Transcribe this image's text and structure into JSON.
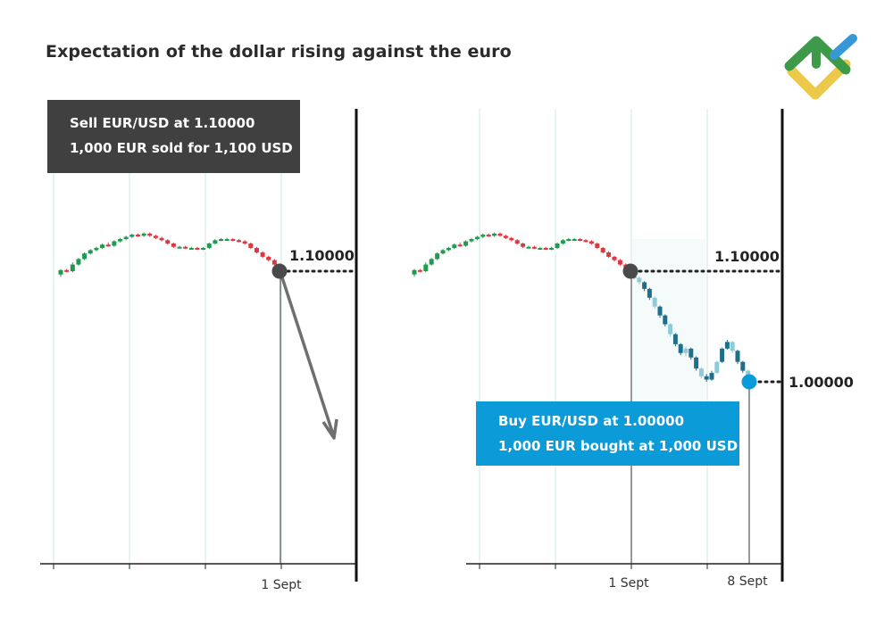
{
  "title": "Expectation of the dollar rising against the euro",
  "sell_box": {
    "line1": "Sell EUR/USD at 1.10000",
    "line2": "1,000 EUR sold for 1,100 USD"
  },
  "buy_box": {
    "line1": "Buy EUR/USD at 1.00000",
    "line2": "1,000 EUR bought at 1,000 USD"
  },
  "colors": {
    "bull": "#1e9b4c",
    "bear": "#e0363f",
    "forecast_dark": "#1f6f8c",
    "forecast_light": "#8ecbd9",
    "sell_box": "#404040",
    "buy_box": "#0c9bd9",
    "sell_marker": "#4a4a4a",
    "buy_marker": "#0c9bd9",
    "arrow": "#6f6f6f",
    "grid": "#cfe8e6"
  },
  "logo": {
    "icon": "litefinance-logo-icon"
  },
  "chart_data": [
    {
      "type": "candlestick",
      "title": "",
      "xlabel": "",
      "ylabel": "",
      "x_tick_labels": [
        "",
        "",
        "",
        "1 Sept"
      ],
      "price_label": "1.10000",
      "entry": {
        "date": "1 Sept",
        "price": 1.1,
        "action": "Sell"
      },
      "expected_direction": "down",
      "ylim": [
        0.96,
        1.16
      ],
      "grid": true,
      "candles": [
        {
          "o": 1.097,
          "c": 1.101,
          "h": 1.102,
          "l": 1.095
        },
        {
          "o": 1.101,
          "c": 1.1,
          "h": 1.102,
          "l": 1.099
        },
        {
          "o": 1.1,
          "c": 1.106,
          "h": 1.108,
          "l": 1.099
        },
        {
          "o": 1.106,
          "c": 1.111,
          "h": 1.112,
          "l": 1.105
        },
        {
          "o": 1.111,
          "c": 1.116,
          "h": 1.117,
          "l": 1.11
        },
        {
          "o": 1.116,
          "c": 1.119,
          "h": 1.12,
          "l": 1.115
        },
        {
          "o": 1.119,
          "c": 1.121,
          "h": 1.122,
          "l": 1.118
        },
        {
          "o": 1.121,
          "c": 1.124,
          "h": 1.125,
          "l": 1.12
        },
        {
          "o": 1.124,
          "c": 1.123,
          "h": 1.126,
          "l": 1.122
        },
        {
          "o": 1.123,
          "c": 1.127,
          "h": 1.128,
          "l": 1.122
        },
        {
          "o": 1.127,
          "c": 1.129,
          "h": 1.13,
          "l": 1.126
        },
        {
          "o": 1.129,
          "c": 1.131,
          "h": 1.132,
          "l": 1.128
        },
        {
          "o": 1.131,
          "c": 1.133,
          "h": 1.134,
          "l": 1.13
        },
        {
          "o": 1.133,
          "c": 1.132,
          "h": 1.134,
          "l": 1.131
        },
        {
          "o": 1.132,
          "c": 1.134,
          "h": 1.135,
          "l": 1.131
        },
        {
          "o": 1.134,
          "c": 1.132,
          "h": 1.135,
          "l": 1.131
        },
        {
          "o": 1.132,
          "c": 1.13,
          "h": 1.133,
          "l": 1.129
        },
        {
          "o": 1.13,
          "c": 1.128,
          "h": 1.131,
          "l": 1.127
        },
        {
          "o": 1.128,
          "c": 1.125,
          "h": 1.129,
          "l": 1.124
        },
        {
          "o": 1.125,
          "c": 1.122,
          "h": 1.126,
          "l": 1.121
        },
        {
          "o": 1.122,
          "c": 1.122,
          "h": 1.123,
          "l": 1.121
        },
        {
          "o": 1.122,
          "c": 1.121,
          "h": 1.123,
          "l": 1.12
        },
        {
          "o": 1.121,
          "c": 1.121,
          "h": 1.122,
          "l": 1.12
        },
        {
          "o": 1.121,
          "c": 1.12,
          "h": 1.122,
          "l": 1.119
        },
        {
          "o": 1.12,
          "c": 1.121,
          "h": 1.122,
          "l": 1.119
        },
        {
          "o": 1.121,
          "c": 1.125,
          "h": 1.126,
          "l": 1.12
        },
        {
          "o": 1.125,
          "c": 1.128,
          "h": 1.129,
          "l": 1.124
        },
        {
          "o": 1.128,
          "c": 1.129,
          "h": 1.13,
          "l": 1.127
        },
        {
          "o": 1.129,
          "c": 1.129,
          "h": 1.13,
          "l": 1.128
        },
        {
          "o": 1.129,
          "c": 1.128,
          "h": 1.13,
          "l": 1.127
        },
        {
          "o": 1.128,
          "c": 1.127,
          "h": 1.129,
          "l": 1.126
        },
        {
          "o": 1.127,
          "c": 1.125,
          "h": 1.128,
          "l": 1.124
        },
        {
          "o": 1.125,
          "c": 1.121,
          "h": 1.126,
          "l": 1.12
        },
        {
          "o": 1.121,
          "c": 1.117,
          "h": 1.122,
          "l": 1.116
        },
        {
          "o": 1.117,
          "c": 1.113,
          "h": 1.118,
          "l": 1.112
        },
        {
          "o": 1.113,
          "c": 1.11,
          "h": 1.114,
          "l": 1.109
        },
        {
          "o": 1.11,
          "c": 1.106,
          "h": 1.111,
          "l": 1.105
        },
        {
          "o": 1.106,
          "c": 1.101,
          "h": 1.107,
          "l": 1.1
        }
      ],
      "forecast": []
    },
    {
      "type": "candlestick",
      "title": "",
      "xlabel": "",
      "ylabel": "",
      "x_tick_labels": [
        "",
        "",
        "1 Sept",
        "",
        "8 Sept"
      ],
      "price_labels": [
        "1.10000",
        "1.00000"
      ],
      "entry": {
        "date": "1 Sept",
        "price": 1.1,
        "action": "Sell"
      },
      "exit": {
        "date": "8 Sept",
        "price": 1.0,
        "action": "Buy"
      },
      "ylim": [
        0.96,
        1.16
      ],
      "grid": true,
      "candles": [
        {
          "o": 1.097,
          "c": 1.101,
          "h": 1.102,
          "l": 1.095
        },
        {
          "o": 1.101,
          "c": 1.1,
          "h": 1.102,
          "l": 1.099
        },
        {
          "o": 1.1,
          "c": 1.106,
          "h": 1.108,
          "l": 1.099
        },
        {
          "o": 1.106,
          "c": 1.111,
          "h": 1.112,
          "l": 1.105
        },
        {
          "o": 1.111,
          "c": 1.116,
          "h": 1.117,
          "l": 1.11
        },
        {
          "o": 1.116,
          "c": 1.119,
          "h": 1.12,
          "l": 1.115
        },
        {
          "o": 1.119,
          "c": 1.121,
          "h": 1.122,
          "l": 1.118
        },
        {
          "o": 1.121,
          "c": 1.124,
          "h": 1.125,
          "l": 1.12
        },
        {
          "o": 1.124,
          "c": 1.123,
          "h": 1.126,
          "l": 1.122
        },
        {
          "o": 1.123,
          "c": 1.127,
          "h": 1.128,
          "l": 1.122
        },
        {
          "o": 1.127,
          "c": 1.129,
          "h": 1.13,
          "l": 1.126
        },
        {
          "o": 1.129,
          "c": 1.131,
          "h": 1.132,
          "l": 1.128
        },
        {
          "o": 1.131,
          "c": 1.133,
          "h": 1.134,
          "l": 1.13
        },
        {
          "o": 1.133,
          "c": 1.132,
          "h": 1.134,
          "l": 1.131
        },
        {
          "o": 1.132,
          "c": 1.134,
          "h": 1.135,
          "l": 1.131
        },
        {
          "o": 1.134,
          "c": 1.132,
          "h": 1.135,
          "l": 1.131
        },
        {
          "o": 1.132,
          "c": 1.13,
          "h": 1.133,
          "l": 1.129
        },
        {
          "o": 1.13,
          "c": 1.128,
          "h": 1.131,
          "l": 1.127
        },
        {
          "o": 1.128,
          "c": 1.125,
          "h": 1.129,
          "l": 1.124
        },
        {
          "o": 1.125,
          "c": 1.122,
          "h": 1.126,
          "l": 1.121
        },
        {
          "o": 1.122,
          "c": 1.122,
          "h": 1.123,
          "l": 1.121
        },
        {
          "o": 1.122,
          "c": 1.121,
          "h": 1.123,
          "l": 1.12
        },
        {
          "o": 1.121,
          "c": 1.121,
          "h": 1.122,
          "l": 1.12
        },
        {
          "o": 1.121,
          "c": 1.12,
          "h": 1.122,
          "l": 1.119
        },
        {
          "o": 1.12,
          "c": 1.121,
          "h": 1.122,
          "l": 1.119
        },
        {
          "o": 1.121,
          "c": 1.125,
          "h": 1.126,
          "l": 1.12
        },
        {
          "o": 1.125,
          "c": 1.128,
          "h": 1.129,
          "l": 1.124
        },
        {
          "o": 1.128,
          "c": 1.129,
          "h": 1.13,
          "l": 1.127
        },
        {
          "o": 1.129,
          "c": 1.129,
          "h": 1.13,
          "l": 1.128
        },
        {
          "o": 1.129,
          "c": 1.128,
          "h": 1.13,
          "l": 1.127
        },
        {
          "o": 1.128,
          "c": 1.127,
          "h": 1.129,
          "l": 1.126
        },
        {
          "o": 1.127,
          "c": 1.125,
          "h": 1.128,
          "l": 1.124
        },
        {
          "o": 1.125,
          "c": 1.121,
          "h": 1.126,
          "l": 1.12
        },
        {
          "o": 1.121,
          "c": 1.117,
          "h": 1.122,
          "l": 1.116
        },
        {
          "o": 1.117,
          "c": 1.113,
          "h": 1.118,
          "l": 1.112
        },
        {
          "o": 1.113,
          "c": 1.11,
          "h": 1.114,
          "l": 1.109
        },
        {
          "o": 1.11,
          "c": 1.106,
          "h": 1.111,
          "l": 1.105
        },
        {
          "o": 1.106,
          "c": 1.101,
          "h": 1.107,
          "l": 1.1
        }
      ],
      "forecast": [
        {
          "o": 1.099,
          "c": 1.094,
          "h": 1.1,
          "l": 1.093
        },
        {
          "o": 1.094,
          "c": 1.09,
          "h": 1.095,
          "l": 1.088
        },
        {
          "o": 1.09,
          "c": 1.084,
          "h": 1.091,
          "l": 1.082
        },
        {
          "o": 1.084,
          "c": 1.076,
          "h": 1.085,
          "l": 1.074
        },
        {
          "o": 1.076,
          "c": 1.068,
          "h": 1.077,
          "l": 1.066
        },
        {
          "o": 1.068,
          "c": 1.06,
          "h": 1.069,
          "l": 1.058
        },
        {
          "o": 1.06,
          "c": 1.052,
          "h": 1.061,
          "l": 1.05
        },
        {
          "o": 1.052,
          "c": 1.043,
          "h": 1.053,
          "l": 1.041
        },
        {
          "o": 1.043,
          "c": 1.034,
          "h": 1.044,
          "l": 1.032
        },
        {
          "o": 1.034,
          "c": 1.026,
          "h": 1.035,
          "l": 1.024
        },
        {
          "o": 1.026,
          "c": 1.03,
          "h": 1.032,
          "l": 1.023
        },
        {
          "o": 1.03,
          "c": 1.022,
          "h": 1.031,
          "l": 1.02
        },
        {
          "o": 1.022,
          "c": 1.012,
          "h": 1.023,
          "l": 1.01
        },
        {
          "o": 1.012,
          "c": 1.005,
          "h": 1.013,
          "l": 1.003
        },
        {
          "o": 1.005,
          "c": 1.002,
          "h": 1.007,
          "l": 1.0
        },
        {
          "o": 1.002,
          "c": 1.008,
          "h": 1.01,
          "l": 1.001
        },
        {
          "o": 1.008,
          "c": 1.018,
          "h": 1.019,
          "l": 1.007
        },
        {
          "o": 1.018,
          "c": 1.03,
          "h": 1.031,
          "l": 1.017
        },
        {
          "o": 1.03,
          "c": 1.036,
          "h": 1.038,
          "l": 1.029
        },
        {
          "o": 1.036,
          "c": 1.028,
          "h": 1.037,
          "l": 1.026
        },
        {
          "o": 1.028,
          "c": 1.018,
          "h": 1.029,
          "l": 1.016
        },
        {
          "o": 1.018,
          "c": 1.01,
          "h": 1.019,
          "l": 1.008
        },
        {
          "o": 1.01,
          "c": 1.004,
          "h": 1.011,
          "l": 1.002
        }
      ]
    }
  ]
}
